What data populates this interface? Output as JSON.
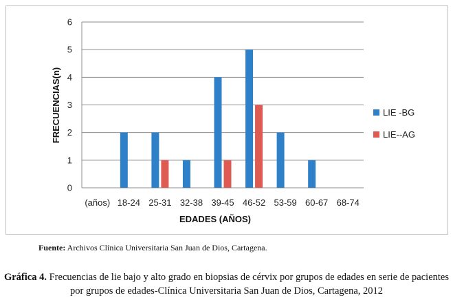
{
  "chart_data": {
    "type": "bar",
    "categories": [
      "(años)",
      "18-24",
      "25-31",
      "32-38",
      "39-45",
      "46-52",
      "53-59",
      "60-67",
      "68-74"
    ],
    "series": [
      {
        "name": "LIE -BG",
        "values": [
          0,
          2,
          2,
          1,
          4,
          5,
          2,
          1,
          0
        ],
        "color": "#2E80C8"
      },
      {
        "name": "LIE--AG",
        "values": [
          0,
          0,
          1,
          0,
          1,
          3,
          0,
          0,
          0
        ],
        "color": "#E05A54"
      }
    ],
    "xlabel": "EDADES (AÑOS)",
    "ylabel": "FRECUENCIAS(n)",
    "ylim": [
      0,
      6
    ],
    "yticks": [
      "0",
      "1",
      "2",
      "3",
      "4",
      "5",
      "6"
    ],
    "grid": true,
    "legend": "right"
  },
  "source": {
    "label": "Fuente:",
    "text": " Archivos Clínica Universitaria San Juan de Dios, Cartagena."
  },
  "caption": {
    "label": "Gráfica 4.",
    "text": " Frecuencias de lie bajo y alto grado en biopsias de cérvix por grupos de edades en serie de pacientes por grupos de edades-Clínica Universitaria San Juan de Dios, Cartagena, 2012"
  }
}
